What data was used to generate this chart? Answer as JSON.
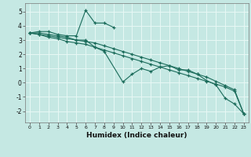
{
  "title": "",
  "xlabel": "Humidex (Indice chaleur)",
  "xlim": [
    -0.5,
    23.5
  ],
  "ylim": [
    -2.8,
    5.6
  ],
  "yticks": [
    -2,
    -1,
    0,
    1,
    2,
    3,
    4,
    5
  ],
  "xticks": [
    0,
    1,
    2,
    3,
    4,
    5,
    6,
    7,
    8,
    9,
    10,
    11,
    12,
    13,
    14,
    15,
    16,
    17,
    18,
    19,
    20,
    21,
    22,
    23
  ],
  "background_color": "#c5e8e3",
  "grid_color": "#e8f8f5",
  "line_color": "#1a6b5a",
  "series": [
    {
      "x": [
        0,
        1,
        2,
        3,
        4,
        5,
        6,
        7,
        8,
        9
      ],
      "y": [
        3.5,
        3.6,
        3.6,
        3.4,
        3.3,
        3.3,
        5.1,
        4.2,
        4.2,
        3.9
      ]
    },
    {
      "x": [
        0,
        1,
        2,
        3,
        4,
        5,
        6,
        7,
        8,
        10,
        11,
        12,
        13,
        14,
        15,
        16,
        17,
        18,
        19,
        20,
        21,
        22,
        23
      ],
      "y": [
        3.5,
        3.5,
        3.4,
        3.3,
        3.2,
        3.0,
        3.0,
        2.5,
        2.2,
        0.05,
        0.6,
        1.0,
        0.8,
        1.1,
        1.2,
        0.9,
        0.9,
        0.6,
        0.15,
        -0.15,
        -1.1,
        -1.5,
        -2.2
      ]
    },
    {
      "x": [
        0,
        1,
        2,
        3,
        4,
        5,
        6,
        7,
        8,
        9,
        10,
        11,
        12,
        13,
        14,
        15,
        16,
        17,
        18,
        19,
        20,
        21,
        22,
        23
      ],
      "y": [
        3.5,
        3.4,
        3.3,
        3.2,
        3.1,
        3.0,
        2.9,
        2.8,
        2.6,
        2.4,
        2.2,
        2.0,
        1.8,
        1.6,
        1.4,
        1.2,
        1.0,
        0.8,
        0.6,
        0.4,
        0.1,
        -0.2,
        -0.5,
        -2.2
      ]
    },
    {
      "x": [
        0,
        1,
        2,
        3,
        4,
        5,
        6,
        7,
        8,
        9,
        10,
        11,
        12,
        13,
        14,
        15,
        16,
        17,
        18,
        19,
        20,
        21,
        22,
        23
      ],
      "y": [
        3.5,
        3.4,
        3.2,
        3.1,
        2.9,
        2.8,
        2.7,
        2.5,
        2.3,
        2.1,
        1.9,
        1.7,
        1.5,
        1.3,
        1.1,
        0.9,
        0.7,
        0.5,
        0.3,
        0.1,
        -0.1,
        -0.3,
        -0.6,
        -2.2
      ]
    }
  ]
}
